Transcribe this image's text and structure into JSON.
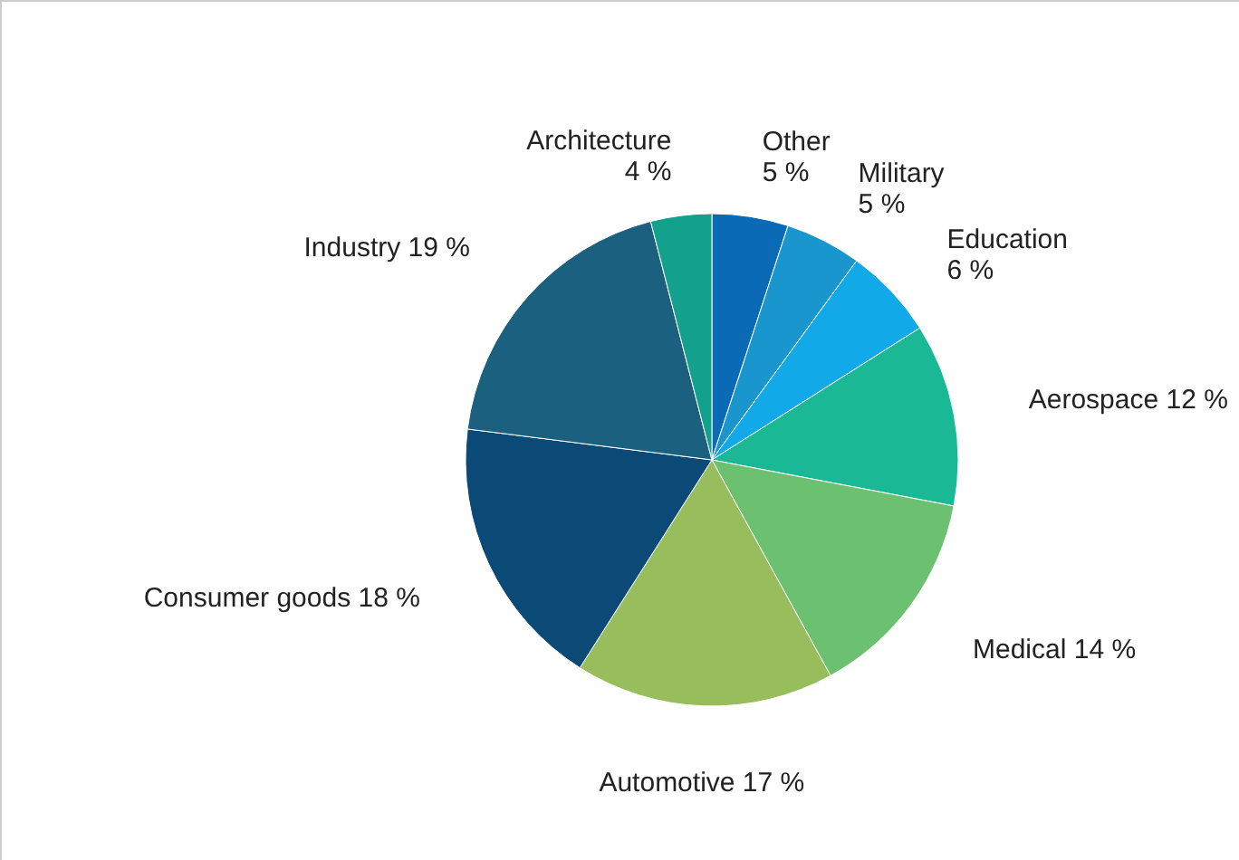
{
  "chart_data": {
    "type": "pie",
    "categories": [
      "Other",
      "Military",
      "Education",
      "Aerospace",
      "Medical",
      "Automotive",
      "Consumer goods",
      "Industry",
      "Architecture"
    ],
    "values": [
      5,
      5,
      6,
      12,
      14,
      17,
      18,
      19,
      4
    ],
    "value_labels": [
      "5 %",
      "5 %",
      "6 %",
      "12 %",
      "14 %",
      "17 %",
      "18 %",
      "19 %",
      "4 %"
    ],
    "colors": [
      "#0a6ab5",
      "#1a96cf",
      "#12a9e8",
      "#1bb896",
      "#6cc170",
      "#97bd5c",
      "#0b4a76",
      "#1b617f",
      "#13a08d"
    ],
    "legend": false
  }
}
